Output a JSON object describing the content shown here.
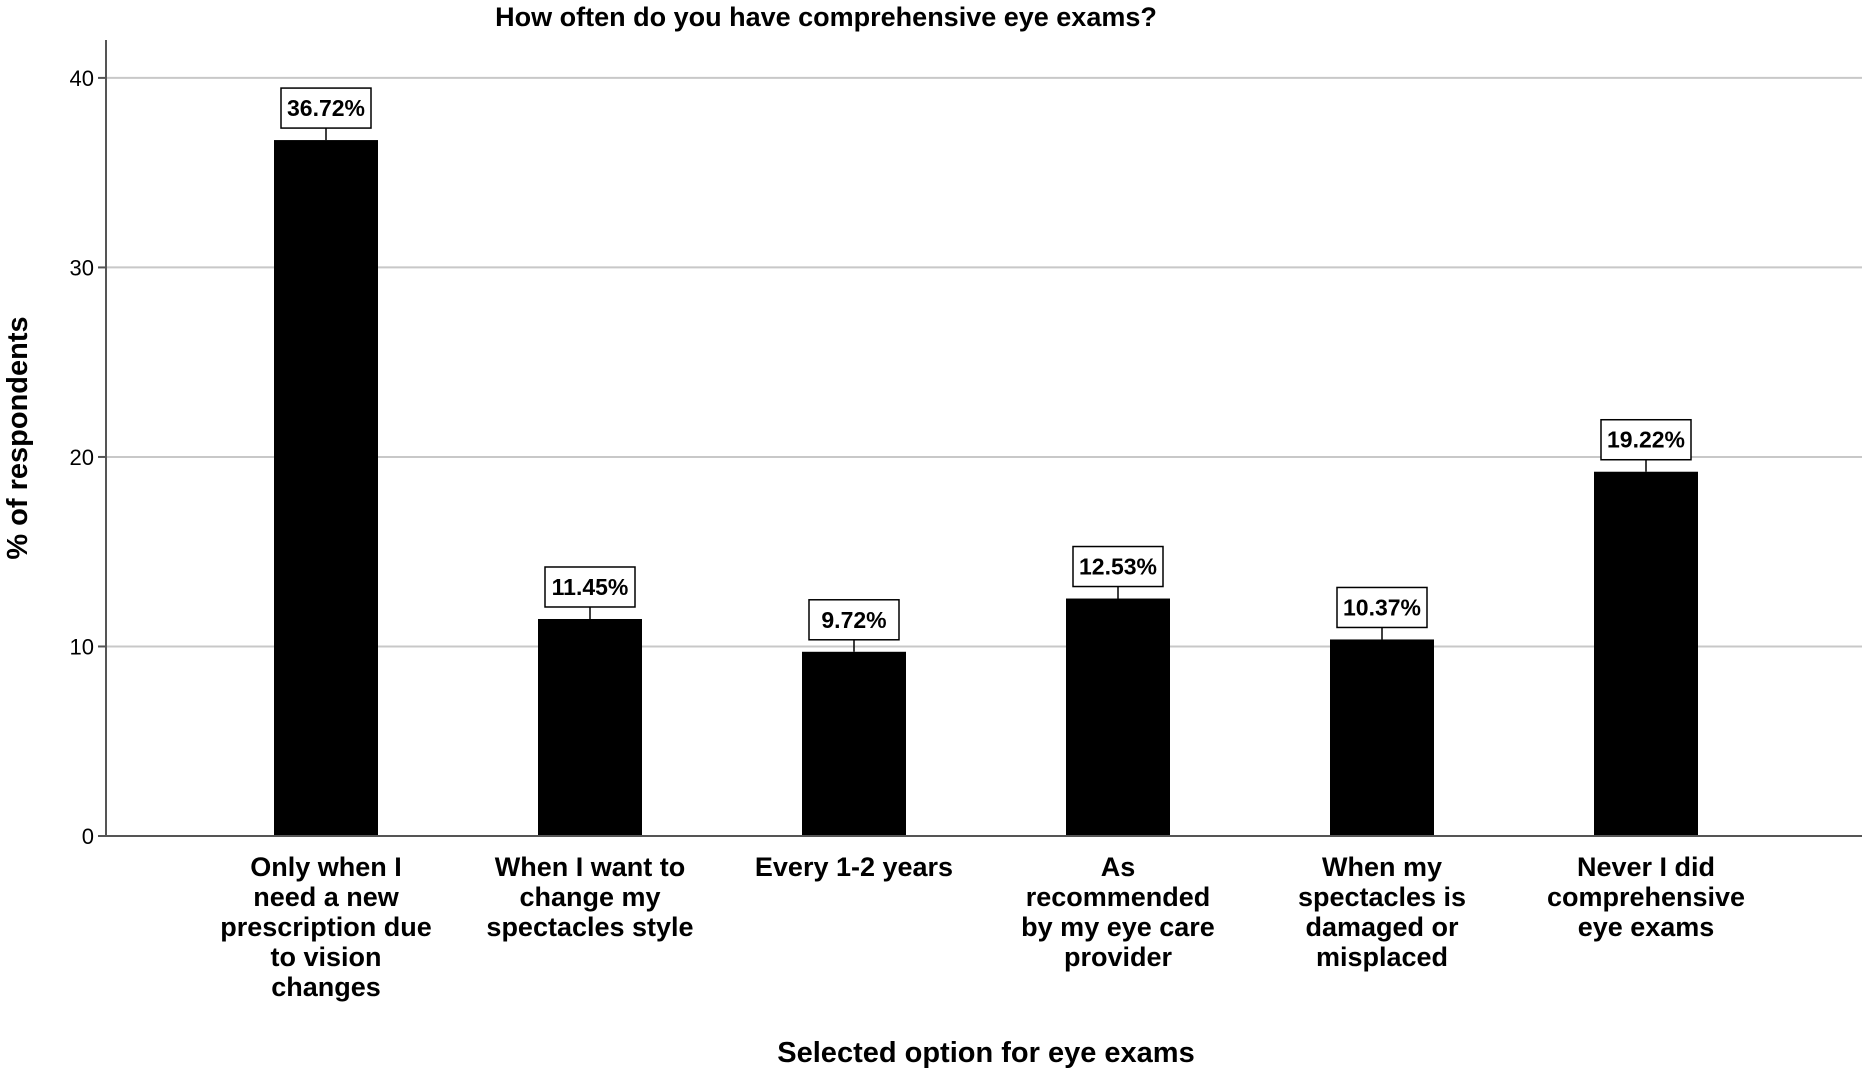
{
  "chart_data": {
    "type": "bar",
    "title": "How often do you have comprehensive eye exams?",
    "xlabel": "Selected option for eye exams",
    "ylabel": "% of respondents",
    "ylim": [
      0,
      42
    ],
    "yticks": [
      0,
      10,
      20,
      30,
      40
    ],
    "grid": true,
    "bar_color": "#000000",
    "categories": [
      [
        "Only when I",
        "need a new",
        "prescription due",
        "to vision",
        "changes"
      ],
      [
        "When I want to",
        "change my",
        "spectacles style"
      ],
      [
        "Every 1-2 years"
      ],
      [
        "As",
        "recommended",
        "by my eye care",
        "provider"
      ],
      [
        "When my",
        "spectacles is",
        "damaged or",
        "misplaced"
      ],
      [
        "Never I did",
        "comprehensive",
        "eye exams"
      ]
    ],
    "values": [
      36.72,
      11.45,
      9.72,
      12.53,
      10.37,
      19.22
    ],
    "data_labels": [
      "36.72%",
      "11.45%",
      "9.72%",
      "12.53%",
      "10.37%",
      "19.22%"
    ]
  }
}
